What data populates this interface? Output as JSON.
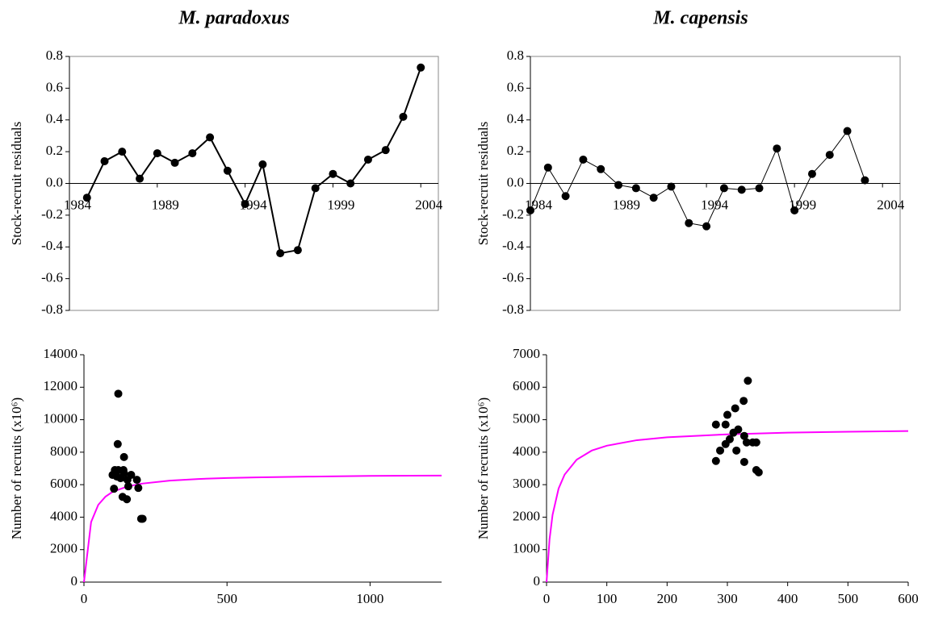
{
  "chart_data": [
    {
      "type": "line",
      "title": "M. paradoxus",
      "ylabel": "Stock-recruit residuals",
      "color": "#000000",
      "line_width": 2,
      "x": [
        1985,
        1986,
        1987,
        1988,
        1989,
        1990,
        1991,
        1992,
        1993,
        1994,
        1995,
        1996,
        1997,
        1998,
        1999,
        2000,
        2001,
        2002,
        2003,
        2004
      ],
      "values": [
        -0.09,
        0.14,
        0.2,
        0.03,
        0.19,
        0.13,
        0.19,
        0.29,
        0.08,
        -0.13,
        0.12,
        -0.44,
        -0.42,
        -0.03,
        0.06,
        0.0,
        0.15,
        0.21,
        0.42,
        0.73
      ],
      "xlim": [
        1984,
        2005
      ],
      "xticks": [
        1984,
        1989,
        1994,
        1999,
        2004
      ],
      "ylim": [
        -0.8,
        0.8
      ],
      "yticks": [
        -0.8,
        -0.6,
        -0.4,
        -0.2,
        {
          "value": 0,
          "label": "0.0"
        },
        0.2,
        0.4,
        0.6,
        0.8
      ]
    },
    {
      "type": "line",
      "title": "M. capensis",
      "ylabel": "Stock-recruit residuals",
      "color": "#000000",
      "line_width": 1,
      "x": [
        1984,
        1985,
        1986,
        1987,
        1988,
        1989,
        1990,
        1991,
        1992,
        1993,
        1994,
        1995,
        1996,
        1997,
        1998,
        1999,
        2000,
        2001,
        2002,
        2003
      ],
      "values": [
        -0.17,
        0.1,
        -0.08,
        0.15,
        0.09,
        -0.01,
        -0.03,
        -0.09,
        -0.02,
        -0.25,
        -0.27,
        -0.03,
        -0.04,
        -0.03,
        0.22,
        -0.17,
        0.06,
        0.18,
        0.33,
        0.02
      ],
      "xlim": [
        1984,
        2005
      ],
      "xticks": [
        1984,
        1989,
        1994,
        1999,
        2004
      ],
      "ylim": [
        -0.8,
        0.8
      ],
      "yticks": [
        -0.8,
        -0.6,
        -0.4,
        -0.2,
        {
          "value": 0,
          "label": "0.0"
        },
        0.2,
        0.4,
        0.6,
        0.8
      ]
    },
    {
      "type": "scatter",
      "ylabel": "Number of recruits (x10⁶)",
      "points": {
        "color": "#000000",
        "x": [
          120,
          118,
          108,
          120,
          138,
          100,
          115,
          128,
          140,
          140,
          152,
          165,
          185,
          155,
          105,
          135,
          150,
          190,
          200,
          205
        ],
        "values": [
          11600,
          8500,
          6900,
          6900,
          6900,
          6600,
          6500,
          6400,
          6700,
          7700,
          6300,
          6600,
          6300,
          5900,
          5750,
          5250,
          5100,
          5800,
          3900,
          3900
        ]
      },
      "curve": {
        "color": "#ff00ff",
        "x": [
          0,
          25,
          50,
          75,
          100,
          150,
          200,
          300,
          400,
          500,
          600,
          800,
          1000,
          1250
        ],
        "values": [
          0,
          3700,
          4760,
          5260,
          5560,
          5880,
          6060,
          6250,
          6350,
          6410,
          6450,
          6500,
          6540,
          6560
        ]
      },
      "xlim": [
        0,
        1250
      ],
      "xticks": [
        0,
        500,
        1000
      ],
      "ylim": [
        0,
        14000
      ],
      "yticks": [
        0,
        2000,
        4000,
        6000,
        8000,
        10000,
        12000,
        14000
      ]
    },
    {
      "type": "scatter",
      "ylabel": "Number of recruits (x10⁶)",
      "points": {
        "color": "#000000",
        "x": [
          281,
          297,
          327,
          334,
          313,
          300,
          318,
          328,
          297,
          304,
          288,
          315,
          332,
          342,
          348,
          281,
          328,
          348,
          352,
          310
        ],
        "values": [
          4850,
          4850,
          5580,
          6200,
          5350,
          5150,
          4700,
          4500,
          4250,
          4400,
          4050,
          4050,
          4300,
          4300,
          4300,
          3730,
          3700,
          3450,
          3380,
          4600
        ]
      },
      "curve": {
        "color": "#ff00ff",
        "x": [
          0,
          5,
          10,
          20,
          30,
          50,
          75,
          100,
          150,
          200,
          300,
          400,
          500,
          600
        ],
        "values": [
          0,
          1320,
          2070,
          2880,
          3310,
          3770,
          4050,
          4200,
          4370,
          4460,
          4550,
          4600,
          4630,
          4650
        ]
      },
      "xlim": [
        0,
        600
      ],
      "xticks": [
        0,
        100,
        200,
        300,
        400,
        500,
        600
      ],
      "ylim": [
        0,
        7000
      ],
      "yticks": [
        0,
        1000,
        2000,
        3000,
        4000,
        5000,
        6000,
        7000
      ]
    }
  ]
}
